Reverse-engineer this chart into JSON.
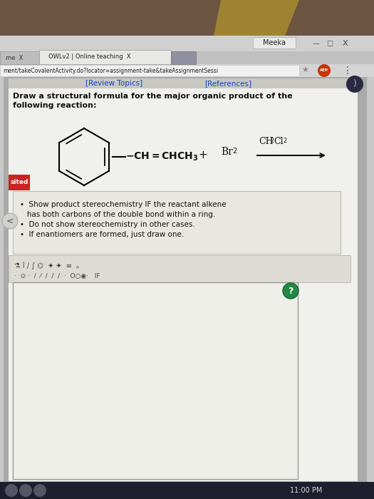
{
  "bg_outer": "#3a3a3a",
  "wood_color": "#6B5540",
  "wood_highlight": "#b8962e",
  "browser_chrome_bg": "#c8c8c8",
  "title_bar_bg": "#d0d0d0",
  "title_bar_text": "Meeka",
  "tab1_text": "me  X",
  "tab2_text": "OWLv2 | Online teaching  X",
  "tab_active_bg": "#e8e8e4",
  "tab_inactive_bg": "#bdbdbd",
  "url_bar_bg": "#f0f0f0",
  "url_text": "ment/takeCovalentActivity.do?locator=assignment-take&takeAssignmentSessi",
  "adp_badge_bg": "#cc3300",
  "content_outer_bg": "#b0b0b0",
  "content_inner_bg": "#f0f0ec",
  "review_bar_bg": "#c8c8c0",
  "review_topics": "[Review Topics]",
  "references": "[References]",
  "question_line1": "Draw a structural formula for the major organic product of the",
  "question_line2": "following reaction:",
  "bullet1a": "•  Show product stereochemistry IF the reactant alkene",
  "bullet1b": "   has both carbons of the double bond within a ring.",
  "bullet2": "•  Do not show stereochemistry in other cases.",
  "bullet3": "•  If enantiomers are formed, just draw one.",
  "sited_bg": "#cc2222",
  "sited_text": "sited",
  "drawing_bg": "#efefea",
  "drawing_border": "#999999",
  "taskbar_bg": "#1a1a2e",
  "time_text": "11:00 PM",
  "left_nav_bg": "#cccccc",
  "headphone_icon_bg": "#2a2a40",
  "bullet_box_bg": "#e8e8e0",
  "bullet_box_border": "#bbbbbb",
  "toolbar_bg": "#dcdcd4",
  "toolbar_border": "#aaaaaa"
}
